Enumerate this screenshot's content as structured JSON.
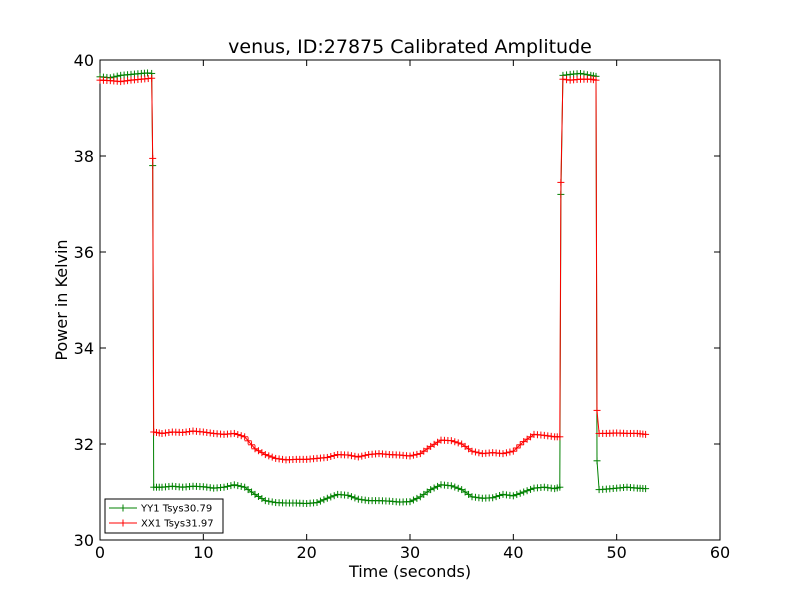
{
  "chart_data": {
    "type": "line",
    "title": "venus, ID:27875 Calibrated Amplitude",
    "xlabel": "Time (seconds)",
    "ylabel": "Power in Kelvin",
    "xlim": [
      0,
      60
    ],
    "ylim": [
      30,
      40
    ],
    "xticks": [
      "0",
      "10",
      "20",
      "30",
      "40",
      "50",
      "60"
    ],
    "yticks": [
      "30",
      "32",
      "34",
      "36",
      "38",
      "40"
    ],
    "grid": false,
    "legend_position": "lower-left",
    "marker": "plus",
    "series": [
      {
        "name": "YY1 Tsys30.79",
        "color": "#008000",
        "points": [
          [
            0.0,
            39.65
          ],
          [
            1.0,
            39.63
          ],
          [
            2.0,
            39.68
          ],
          [
            3.0,
            39.7
          ],
          [
            4.0,
            39.72
          ],
          [
            4.6,
            39.73
          ],
          [
            5.0,
            39.72
          ],
          [
            5.1,
            37.8
          ],
          [
            5.2,
            31.1
          ],
          [
            6.0,
            31.1
          ],
          [
            7.0,
            31.12
          ],
          [
            8.0,
            31.1
          ],
          [
            9.0,
            31.12
          ],
          [
            10.0,
            31.11
          ],
          [
            11.0,
            31.08
          ],
          [
            12.0,
            31.1
          ],
          [
            13.0,
            31.15
          ],
          [
            14.0,
            31.1
          ],
          [
            15.0,
            30.95
          ],
          [
            16.0,
            30.82
          ],
          [
            17.0,
            30.78
          ],
          [
            18.0,
            30.77
          ],
          [
            19.0,
            30.77
          ],
          [
            20.0,
            30.76
          ],
          [
            21.0,
            30.78
          ],
          [
            22.0,
            30.87
          ],
          [
            23.0,
            30.95
          ],
          [
            24.0,
            30.93
          ],
          [
            25.0,
            30.85
          ],
          [
            26.0,
            30.82
          ],
          [
            27.0,
            30.82
          ],
          [
            28.0,
            30.81
          ],
          [
            29.0,
            30.79
          ],
          [
            30.0,
            30.8
          ],
          [
            31.0,
            30.9
          ],
          [
            32.0,
            31.05
          ],
          [
            33.0,
            31.15
          ],
          [
            34.0,
            31.13
          ],
          [
            35.0,
            31.05
          ],
          [
            36.0,
            30.9
          ],
          [
            37.0,
            30.87
          ],
          [
            38.0,
            30.88
          ],
          [
            39.0,
            30.95
          ],
          [
            40.0,
            30.92
          ],
          [
            41.0,
            31.0
          ],
          [
            42.0,
            31.08
          ],
          [
            43.0,
            31.1
          ],
          [
            44.0,
            31.07
          ],
          [
            44.5,
            31.1
          ],
          [
            44.6,
            37.2
          ],
          [
            44.8,
            39.68
          ],
          [
            45.5,
            39.7
          ],
          [
            46.5,
            39.72
          ],
          [
            47.5,
            39.68
          ],
          [
            48.0,
            39.66
          ],
          [
            48.1,
            31.65
          ],
          [
            48.3,
            31.05
          ],
          [
            49.0,
            31.06
          ],
          [
            50.0,
            31.08
          ],
          [
            51.0,
            31.1
          ],
          [
            52.0,
            31.08
          ],
          [
            52.8,
            31.07
          ]
        ]
      },
      {
        "name": "XX1 Tsys31.97",
        "color": "#ff0000",
        "points": [
          [
            0.0,
            39.58
          ],
          [
            1.0,
            39.57
          ],
          [
            2.0,
            39.55
          ],
          [
            3.0,
            39.58
          ],
          [
            4.0,
            39.6
          ],
          [
            5.0,
            39.62
          ],
          [
            5.1,
            37.95
          ],
          [
            5.2,
            32.25
          ],
          [
            6.0,
            32.22
          ],
          [
            7.0,
            32.25
          ],
          [
            8.0,
            32.24
          ],
          [
            9.0,
            32.27
          ],
          [
            10.0,
            32.25
          ],
          [
            11.0,
            32.22
          ],
          [
            12.0,
            32.2
          ],
          [
            13.0,
            32.22
          ],
          [
            14.0,
            32.15
          ],
          [
            15.0,
            31.9
          ],
          [
            16.0,
            31.78
          ],
          [
            17.0,
            31.7
          ],
          [
            18.0,
            31.67
          ],
          [
            19.0,
            31.68
          ],
          [
            20.0,
            31.68
          ],
          [
            21.0,
            31.7
          ],
          [
            22.0,
            31.72
          ],
          [
            23.0,
            31.78
          ],
          [
            24.0,
            31.77
          ],
          [
            25.0,
            31.73
          ],
          [
            26.0,
            31.78
          ],
          [
            27.0,
            31.8
          ],
          [
            28.0,
            31.78
          ],
          [
            29.0,
            31.77
          ],
          [
            30.0,
            31.75
          ],
          [
            31.0,
            31.8
          ],
          [
            32.0,
            31.95
          ],
          [
            33.0,
            32.08
          ],
          [
            34.0,
            32.07
          ],
          [
            35.0,
            32.0
          ],
          [
            36.0,
            31.85
          ],
          [
            37.0,
            31.8
          ],
          [
            38.0,
            31.82
          ],
          [
            39.0,
            31.8
          ],
          [
            40.0,
            31.85
          ],
          [
            41.0,
            32.05
          ],
          [
            42.0,
            32.2
          ],
          [
            43.0,
            32.18
          ],
          [
            44.0,
            32.15
          ],
          [
            44.5,
            32.15
          ],
          [
            44.6,
            37.45
          ],
          [
            44.8,
            39.6
          ],
          [
            45.5,
            39.58
          ],
          [
            46.5,
            39.6
          ],
          [
            47.5,
            39.6
          ],
          [
            48.0,
            39.58
          ],
          [
            48.1,
            32.7
          ],
          [
            48.3,
            32.22
          ],
          [
            49.0,
            32.22
          ],
          [
            50.0,
            32.23
          ],
          [
            51.0,
            32.22
          ],
          [
            52.0,
            32.22
          ],
          [
            52.8,
            32.2
          ]
        ]
      }
    ]
  }
}
